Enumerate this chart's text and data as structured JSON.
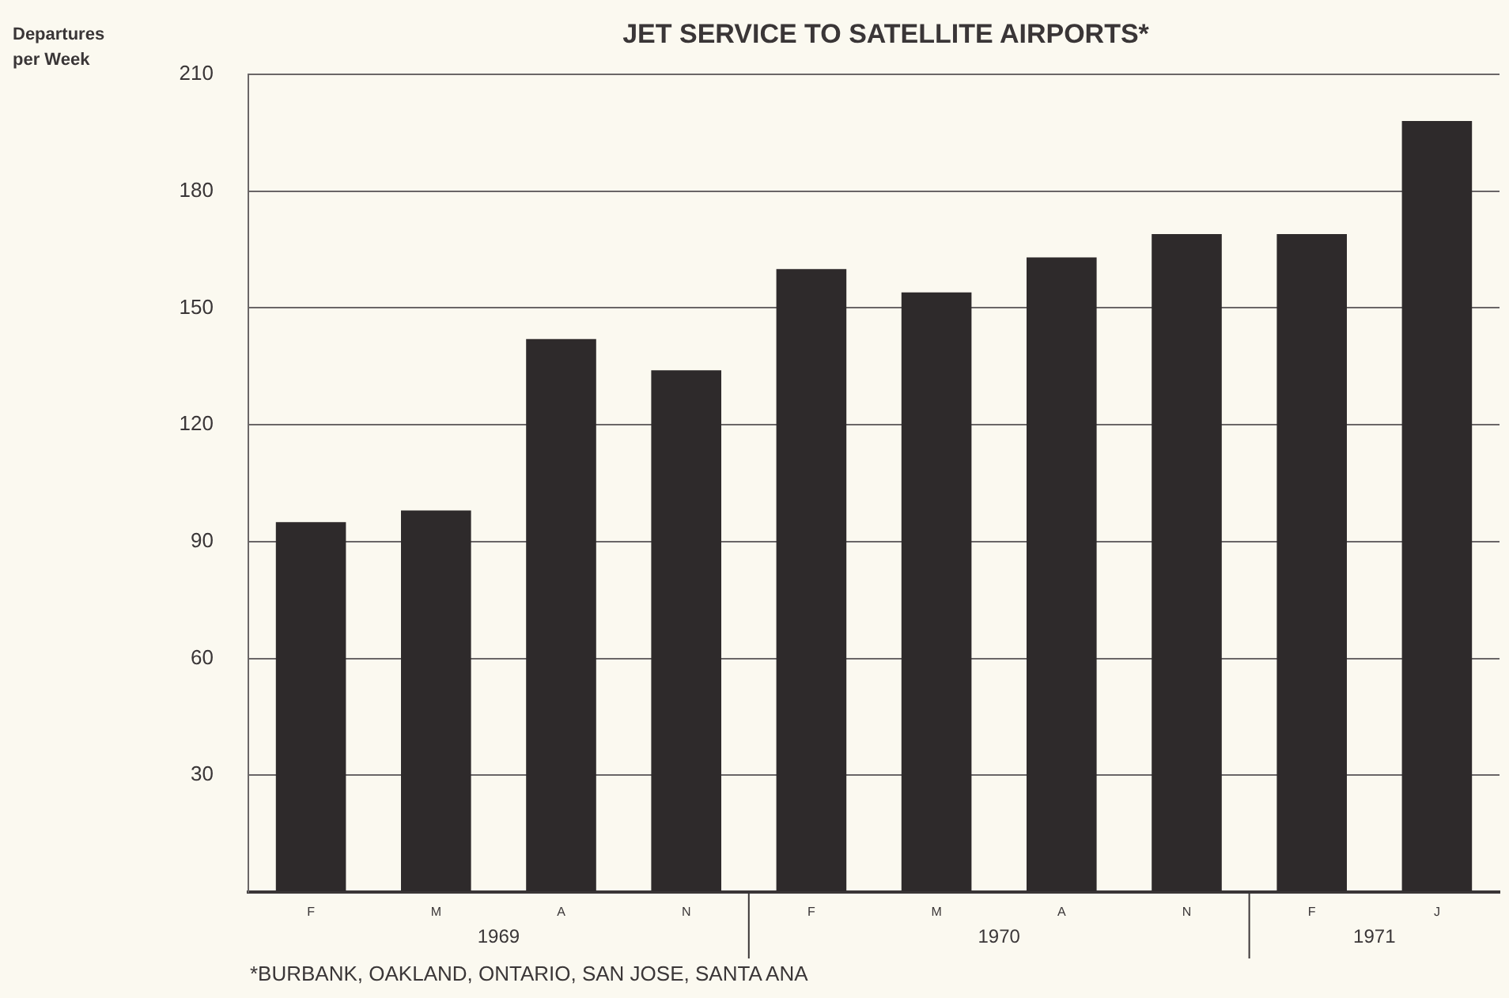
{
  "chart_data": {
    "type": "bar",
    "title": "JET SERVICE TO SATELLITE AIRPORTS*",
    "ylabel": "Departures per Week",
    "categories": [
      "F",
      "M",
      "A",
      "N",
      "F",
      "M",
      "A",
      "N",
      "F",
      "J"
    ],
    "values": [
      95,
      98,
      142,
      134,
      160,
      154,
      163,
      169,
      169,
      198
    ],
    "color": "#2e2a2b",
    "ylim": [
      0,
      210
    ],
    "yticks": [
      {
        "value": 0,
        "label": null
      },
      30,
      60,
      90,
      120,
      150,
      180,
      210
    ],
    "grid": "y",
    "annotations": [
      "1969",
      "1970",
      "1971",
      "*BURBANK, OAKLAND, ONTARIO, SAN JOSE, SANTA ANA"
    ]
  }
}
